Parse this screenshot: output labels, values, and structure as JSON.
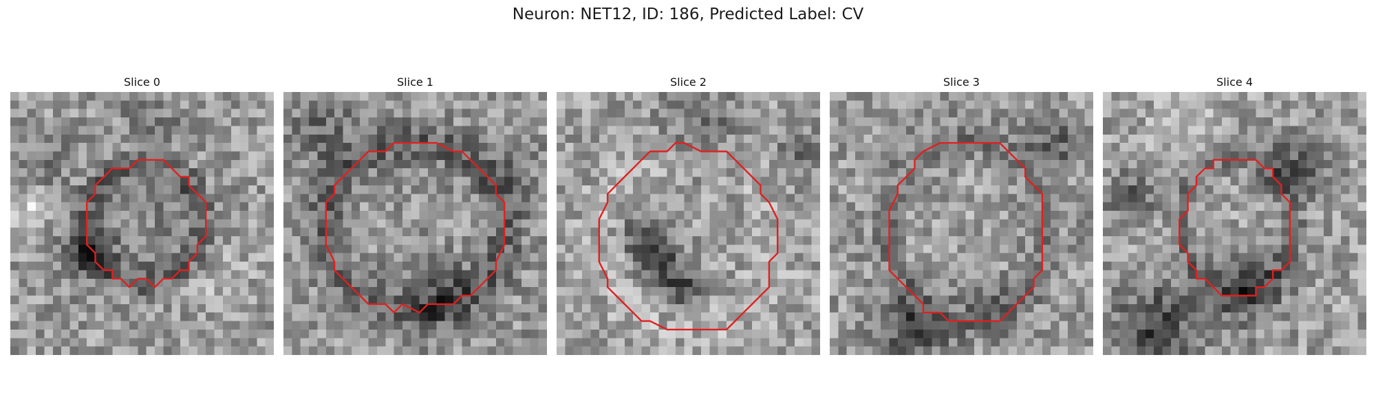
{
  "figure": {
    "title": "Neuron: NET12, ID: 186, Predicted Label: CV"
  },
  "colors": {
    "outline": "#e02020",
    "background": "#ffffff"
  },
  "panels": [
    {
      "title": "Slice 0"
    },
    {
      "title": "Slice 1"
    },
    {
      "title": "Slice 2"
    },
    {
      "title": "Slice 3"
    },
    {
      "title": "Slice 4"
    }
  ]
}
